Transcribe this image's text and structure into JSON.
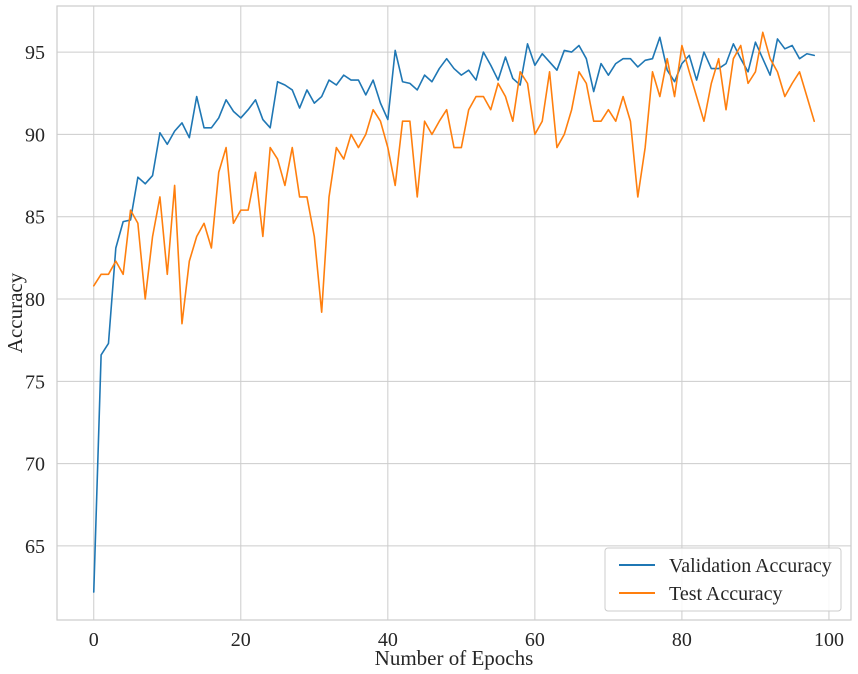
{
  "chart_data": {
    "type": "line",
    "xlabel": "Number of Epochs",
    "ylabel": "Accuracy",
    "xlim": [
      -5.0,
      103.0
    ],
    "ylim": [
      60.5,
      97.8
    ],
    "xticks": [
      0,
      20,
      40,
      60,
      80,
      100
    ],
    "yticks": [
      65,
      70,
      75,
      80,
      85,
      90,
      95
    ],
    "grid": true,
    "legend_position": "bottom-right",
    "x": [
      0,
      1,
      2,
      3,
      4,
      5,
      6,
      7,
      8,
      9,
      10,
      11,
      12,
      13,
      14,
      15,
      16,
      17,
      18,
      19,
      20,
      21,
      22,
      23,
      24,
      25,
      26,
      27,
      28,
      29,
      30,
      31,
      32,
      33,
      34,
      35,
      36,
      37,
      38,
      39,
      40,
      41,
      42,
      43,
      44,
      45,
      46,
      47,
      48,
      49,
      50,
      51,
      52,
      53,
      54,
      55,
      56,
      57,
      58,
      59,
      60,
      61,
      62,
      63,
      64,
      65,
      66,
      67,
      68,
      69,
      70,
      71,
      72,
      73,
      74,
      75,
      76,
      77,
      78,
      79,
      80,
      81,
      82,
      83,
      84,
      85,
      86,
      87,
      88,
      89,
      90,
      91,
      92,
      93,
      94,
      95,
      96,
      97,
      98
    ],
    "series": [
      {
        "name": "Validation Accuracy",
        "color": "#1f77b4",
        "values": [
          62.2,
          76.6,
          77.3,
          83.1,
          84.7,
          84.8,
          87.4,
          87.0,
          87.5,
          90.1,
          89.4,
          90.2,
          90.7,
          89.8,
          92.3,
          90.4,
          90.4,
          91.0,
          92.1,
          91.4,
          91.0,
          91.5,
          92.1,
          90.9,
          90.4,
          93.2,
          93.0,
          92.7,
          91.6,
          92.7,
          91.9,
          92.3,
          93.3,
          93.0,
          93.6,
          93.3,
          93.3,
          92.4,
          93.3,
          91.9,
          90.9,
          95.1,
          93.2,
          93.1,
          92.7,
          93.6,
          93.2,
          94.0,
          94.6,
          94.0,
          93.6,
          93.9,
          93.3,
          95.0,
          94.2,
          93.3,
          94.7,
          93.4,
          93.0,
          95.5,
          94.2,
          94.9,
          94.4,
          93.9,
          95.1,
          95.0,
          95.4,
          94.6,
          92.6,
          94.3,
          93.6,
          94.3,
          94.6,
          94.6,
          94.1,
          94.5,
          94.6,
          95.9,
          93.9,
          93.2,
          94.3,
          94.8,
          93.3,
          95.0,
          94.0,
          94.0,
          94.3,
          95.5,
          94.6,
          93.8,
          95.6,
          94.6,
          93.6,
          95.8,
          95.2,
          95.4,
          94.6,
          94.9,
          94.8
        ]
      },
      {
        "name": "Test Accuracy",
        "color": "#ff7f0e",
        "values": [
          80.8,
          81.5,
          81.5,
          82.3,
          81.5,
          85.4,
          84.6,
          80.0,
          83.8,
          86.2,
          81.5,
          86.9,
          78.5,
          82.3,
          83.8,
          84.6,
          83.1,
          87.7,
          89.2,
          84.6,
          85.4,
          85.4,
          87.7,
          83.8,
          89.2,
          88.5,
          86.9,
          89.2,
          86.2,
          86.2,
          83.8,
          79.2,
          86.2,
          89.2,
          88.5,
          90.0,
          89.2,
          90.0,
          91.5,
          90.8,
          89.2,
          86.9,
          90.8,
          90.8,
          86.2,
          90.8,
          90.0,
          90.8,
          91.5,
          89.2,
          89.2,
          91.5,
          92.3,
          92.3,
          91.5,
          93.1,
          92.3,
          90.8,
          93.8,
          93.1,
          90.0,
          90.8,
          93.8,
          89.2,
          90.0,
          91.5,
          93.8,
          93.1,
          90.8,
          90.8,
          91.5,
          90.8,
          92.3,
          90.8,
          86.2,
          89.2,
          93.8,
          92.3,
          94.6,
          92.3,
          95.4,
          93.8,
          92.3,
          90.8,
          93.1,
          94.6,
          91.5,
          94.6,
          95.4,
          93.1,
          93.8,
          96.2,
          94.6,
          93.8,
          92.3,
          93.1,
          93.8,
          92.3,
          90.8
        ]
      }
    ]
  }
}
